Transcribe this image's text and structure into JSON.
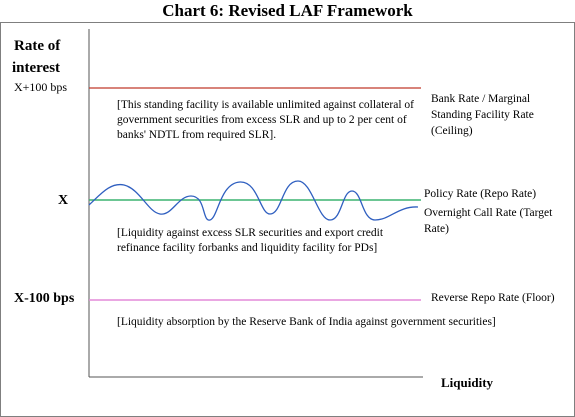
{
  "title": "Chart 6: Revised LAF Framework",
  "y_axis": {
    "label_line1": "Rate of",
    "label_line2": "interest",
    "levels": {
      "upper": "X+100  bps",
      "middle": "X",
      "lower": "X-100 bps"
    }
  },
  "x_axis": {
    "label": "Liquidity"
  },
  "corridor": {
    "ceiling": {
      "label": "Bank Rate / Marginal Standing Facility Rate (Ceiling)",
      "note": "[This standing facility is available unlimited against collateral of government securities from excess SLR and up to 2 per cent of banks' NDTL from required SLR].",
      "color": "#c0392b"
    },
    "policy": {
      "label": "Policy  Rate  (Repo Rate)",
      "label_line2": "Overnight Call Rate (Target Rate)",
      "note": "[Liquidity against excess SLR securities and export credit refinance facility forbanks and liquidity facility for PDs]",
      "color": "#3cb371",
      "wave_color": "#2f5fc0"
    },
    "floor": {
      "label": "Reverse Repo Rate (Floor)",
      "note": "[Liquidity absorption by the Reserve Bank of India against government securities]",
      "color": "#e48ad8"
    }
  }
}
